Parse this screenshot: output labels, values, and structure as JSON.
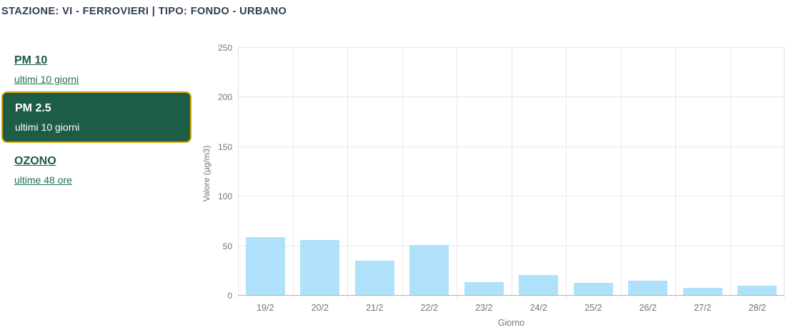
{
  "header": {
    "title": "STAZIONE: VI - FERROVIERI | TIPO: FONDO - URBANO"
  },
  "sidebar": {
    "items": [
      {
        "label": "PM 10",
        "sublabel": "ultimi 10 giorni",
        "selected": false
      },
      {
        "label": "PM 2.5",
        "sublabel": "ultimi 10 giorni",
        "selected": true
      },
      {
        "label": "OZONO",
        "sublabel": "ultime 48 ore",
        "selected": false
      }
    ]
  },
  "colors": {
    "header_text": "#2f3e55",
    "link_green": "#1a5b45",
    "sublink_green": "#1f7050",
    "selected_bg": "#1d5c45",
    "selected_border": "#d9a406",
    "selected_text": "#ffffff",
    "bar_fill": "#b0e1fa",
    "grid_line": "#e6e6e6",
    "axis_line": "#b3b3b3",
    "tick_text": "#757575"
  },
  "chart_data": {
    "type": "bar",
    "title": "",
    "categories": [
      "19/2",
      "20/2",
      "21/2",
      "22/2",
      "23/2",
      "24/2",
      "25/2",
      "26/2",
      "27/2",
      "28/2"
    ],
    "values": [
      59,
      56,
      35,
      51,
      14,
      21,
      13,
      15,
      8,
      10
    ],
    "xlabel": "Giorno",
    "ylabel": "Valore (µg/m3)",
    "ylim": [
      0,
      250
    ],
    "yticks": [
      0,
      50,
      100,
      150,
      200,
      250
    ],
    "grid": true,
    "legend": "none",
    "bar_color": "#b0e1fa",
    "bar_group_width_pct": 72
  }
}
